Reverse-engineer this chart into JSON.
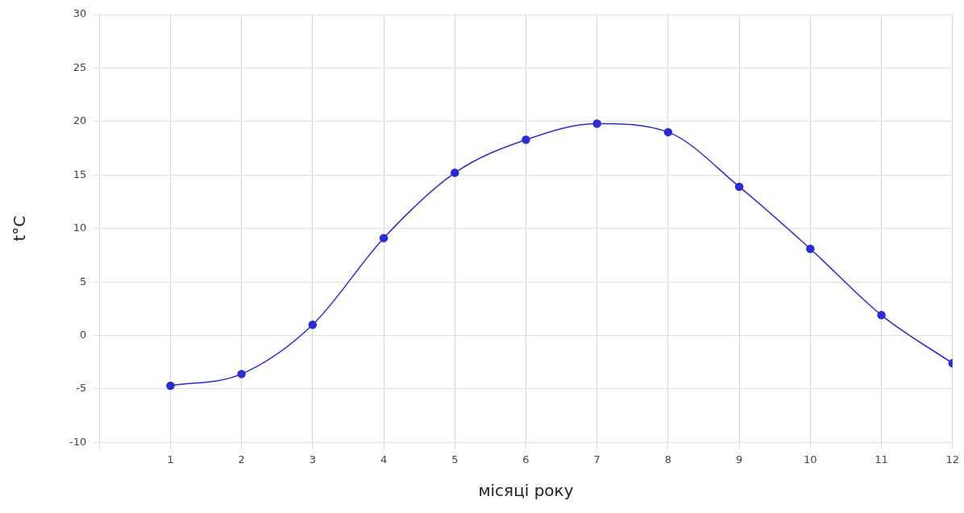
{
  "chart_data": {
    "type": "line",
    "xlabel": "місяці року",
    "ylabel": "t°C",
    "x": [
      1,
      2,
      3,
      4,
      5,
      6,
      7,
      8,
      9,
      10,
      11,
      12
    ],
    "series": [
      {
        "color": "#2b2bd6",
        "values": [
          -4.7,
          -3.6,
          1,
          9.1,
          15.2,
          18.3,
          19.8,
          19,
          13.9,
          8.1,
          1.9,
          -2.6
        ]
      }
    ],
    "xlim": [
      0,
      12
    ],
    "xticks": [
      {
        "value": 0,
        "label": null
      },
      1,
      2,
      3,
      4,
      5,
      6,
      7,
      8,
      9,
      10,
      11,
      12
    ],
    "ylim": [
      -10,
      30
    ],
    "yticks": [
      -10,
      -5,
      0,
      5,
      10,
      15,
      20,
      25,
      30
    ],
    "grid": true,
    "legend": false,
    "marker": "circle",
    "line_style": "solid"
  }
}
